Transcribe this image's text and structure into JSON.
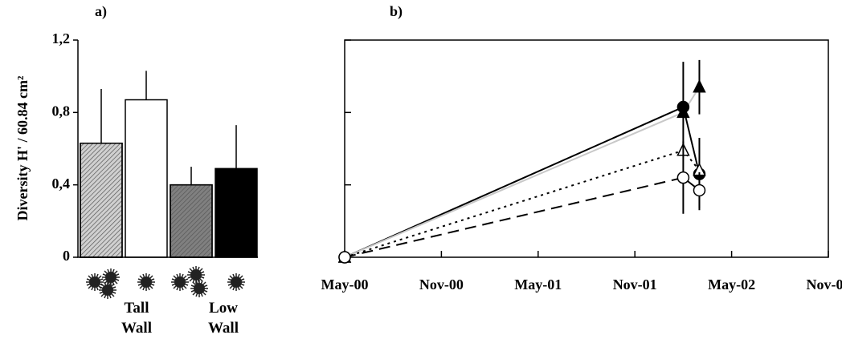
{
  "chart_data": [
    {
      "type": "bar",
      "title": "a)",
      "y_label": "Diversity H' / 60.84 cm²",
      "categories": [
        null,
        null,
        null,
        null
      ],
      "values": [
        0.63,
        0.87,
        0.4,
        0.49
      ],
      "errors": [
        0.3,
        0.16,
        0.1,
        0.24
      ],
      "colors": [
        "#d0d0d0",
        "#ffffff",
        "#808080",
        "#000000"
      ],
      "hatch": [
        true,
        false,
        true,
        false
      ],
      "annotations": [
        "Tall Wall",
        "Low Wall"
      ],
      "ylim": [
        0,
        1.2
      ],
      "yticks": [
        0,
        {
          "value": 0.4,
          "label": "0,4"
        },
        {
          "value": 0.8,
          "label": "0,8"
        },
        {
          "value": 1.2,
          "label": "1,2"
        }
      ]
    },
    {
      "type": "line",
      "title": "b)",
      "x": [
        "2000-05",
        "2002-02",
        "2002-03"
      ],
      "xlim": [
        "2000-05",
        "2002-11"
      ],
      "xticks": [
        {
          "value": "2000-05",
          "label": "May-00"
        },
        {
          "value": "2000-11",
          "label": "Nov-00"
        },
        {
          "value": "2001-05",
          "label": "May-01"
        },
        {
          "value": "2001-11",
          "label": "Nov-01"
        },
        {
          "value": "2002-05",
          "label": "May-02"
        },
        {
          "value": "2002-11",
          "label": "Nov-02"
        }
      ],
      "ylim": [
        0,
        1.2
      ],
      "yticks": [
        0,
        0.4,
        0.8,
        1.2
      ],
      "series": [
        {
          "color": "#000000",
          "dash": "solid",
          "marker": "circle",
          "filled": true,
          "values": [
            0,
            0.83,
            0.46
          ],
          "errors": [
            null,
            0.25,
            0.2
          ]
        },
        {
          "color": "#c8c8c8",
          "dash": "solid",
          "marker": "triangle",
          "filled": true,
          "values": [
            0,
            0.8,
            0.94
          ],
          "errors": [
            null,
            null,
            0.15
          ]
        },
        {
          "color": "#000000",
          "dash": "dotted",
          "marker": "triangle",
          "filled": false,
          "values": [
            0,
            0.59,
            0.48
          ],
          "errors": [
            null,
            null,
            null
          ]
        },
        {
          "color": "#000000",
          "dash": "dashed",
          "marker": "circle",
          "filled": false,
          "values": [
            0,
            0.44,
            0.37
          ],
          "errors": [
            null,
            0.2,
            0.1
          ]
        }
      ]
    }
  ]
}
